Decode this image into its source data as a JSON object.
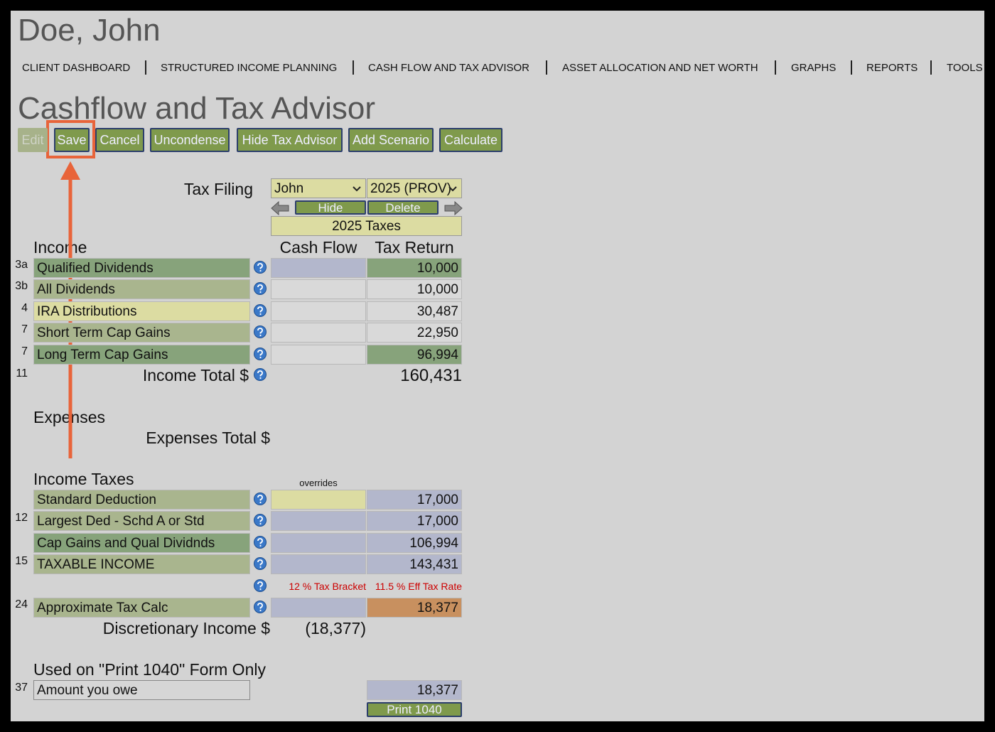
{
  "header": {
    "name": "Doe, John"
  },
  "nav": [
    "CLIENT DASHBOARD",
    "STRUCTURED INCOME PLANNING",
    "CASH FLOW AND TAX ADVISOR",
    "ASSET ALLOCATION AND NET WORTH",
    "GRAPHS",
    "REPORTS",
    "TOOLS"
  ],
  "page_title": "Cashflow and Tax Advisor",
  "toolbar": [
    "Edit",
    "Save",
    "Cancel",
    "Uncondense",
    "Hide Tax Advisor",
    "Add Scenario",
    "Calculate"
  ],
  "tax_filing": {
    "label": "Tax Filing",
    "person": "John",
    "year": "2025 (PROV)",
    "buttons": [
      "Hide",
      "Delete"
    ],
    "header": "2025 Taxes"
  },
  "columns": [
    "Cash Flow",
    "Tax Return"
  ],
  "income": {
    "title": "Income",
    "rows": [
      {
        "line": "3a",
        "label": "Qualified Dividends",
        "tax_return": "10,000"
      },
      {
        "line": "3b",
        "label": "All Dividends",
        "tax_return": "10,000"
      },
      {
        "line": "4",
        "label": "IRA Distributions",
        "tax_return": "30,487"
      },
      {
        "line": "7",
        "label": "Short Term Cap Gains",
        "tax_return": "22,950"
      },
      {
        "line": "7",
        "label": "Long Term Cap Gains",
        "tax_return": "96,994"
      }
    ],
    "total_line": "11",
    "total_label": "Income Total $",
    "total": "160,431"
  },
  "expenses": {
    "title": "Expenses",
    "total_label": "Expenses Total $"
  },
  "income_taxes": {
    "title": "Income Taxes",
    "overrides": "overrides",
    "rows": [
      {
        "label": "Standard Deduction",
        "tax_return": "17,000"
      },
      {
        "line": "12",
        "label": "Largest Ded - Schd A or Std",
        "tax_return": "17,000"
      },
      {
        "label": "Cap Gains and Qual Dividnds",
        "tax_return": "106,994"
      },
      {
        "line": "15",
        "label": "TAXABLE INCOME",
        "tax_return": "143,431"
      }
    ],
    "bracket": "12 % Tax Bracket",
    "eff_rate": "11.5 % Eff Tax Rate",
    "calc": {
      "line": "24",
      "label": "Approximate Tax Calc",
      "tax_return": "18,377"
    },
    "discretionary_label": "Discretionary Income $",
    "discretionary": "(18,377)"
  },
  "print_section": {
    "title": "Used on \"Print 1040\" Form Only",
    "line": "37",
    "label": "Amount you owe",
    "value": "18,377",
    "button": "Print 1040"
  }
}
